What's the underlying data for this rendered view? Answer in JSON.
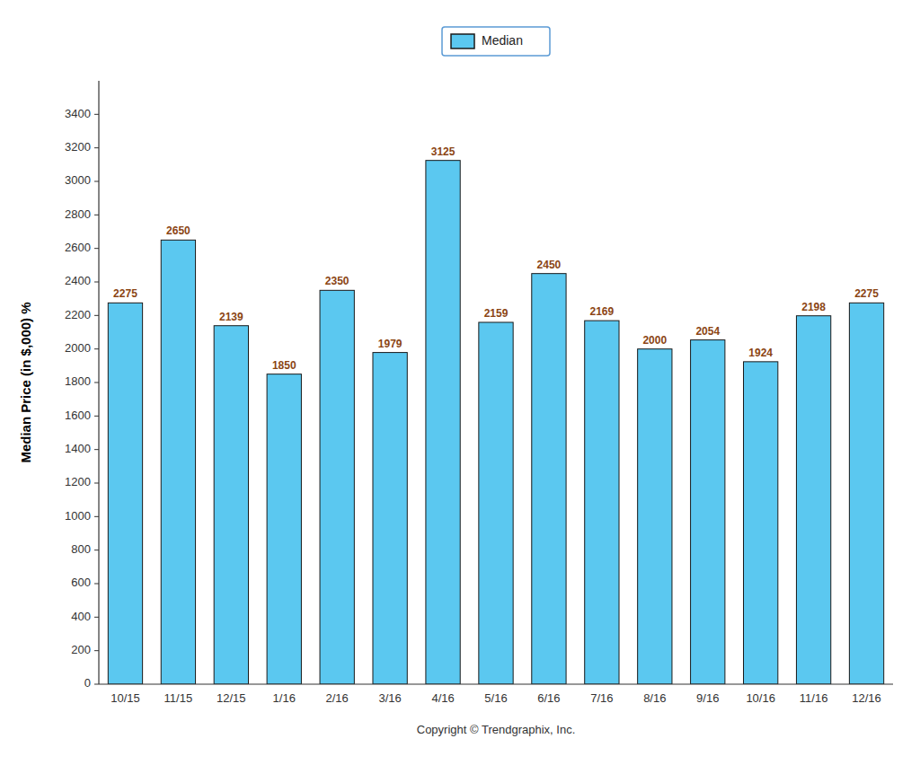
{
  "chart_data": {
    "type": "bar",
    "categories": [
      "10/15",
      "11/15",
      "12/15",
      "1/16",
      "2/16",
      "3/16",
      "4/16",
      "5/16",
      "6/16",
      "7/16",
      "8/16",
      "9/16",
      "10/16",
      "11/16",
      "12/16"
    ],
    "series": [
      {
        "name": "Median",
        "color": "#5BC8F0",
        "values": [
          2275,
          2650,
          2139,
          1850,
          2350,
          1979,
          3125,
          2159,
          2450,
          2169,
          2000,
          2054,
          1924,
          2198,
          2275
        ]
      }
    ],
    "ylabel": "Median Price (in $,000) %",
    "xlabel": "Copyright © Trendgraphix, Inc.",
    "ylim": [
      0,
      3600
    ],
    "yticks": [
      0,
      200,
      400,
      600,
      800,
      1000,
      1200,
      1400,
      1600,
      1800,
      2000,
      2200,
      2400,
      2600,
      2800,
      3000,
      3200,
      3400
    ],
    "grid": false,
    "legend": "top",
    "data_labels": true
  }
}
